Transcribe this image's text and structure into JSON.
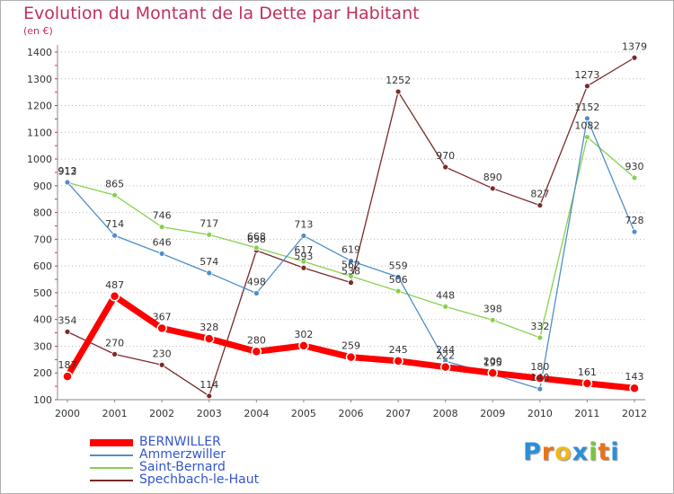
{
  "header": {
    "title": "Evolution du Montant de la Dette par Habitant",
    "unit": "(en €)"
  },
  "logo": {
    "text": "Proxiti",
    "colors": [
      "#2a8fd8",
      "#e8731a",
      "#f0b81a",
      "#2a8fd8",
      "#7cc242",
      "#e8731a",
      "#2a8fd8"
    ]
  },
  "chart_data": {
    "type": "line",
    "x": [
      "2000",
      "2001",
      "2002",
      "2003",
      "2004",
      "2005",
      "2006",
      "2007",
      "2008",
      "2009",
      "2010",
      "2011",
      "2012"
    ],
    "yticks": [
      100,
      200,
      300,
      400,
      500,
      600,
      700,
      800,
      900,
      1000,
      1100,
      1200,
      1300,
      1400
    ],
    "ylim": [
      100,
      1400
    ],
    "grid": "horizontal-dotted",
    "legend_position": "bottom-left",
    "series": [
      {
        "name": "BERNWILLER",
        "color": "#ff0000",
        "values": [
          187,
          487,
          367,
          328,
          280,
          302,
          259,
          245,
          222,
          200,
          180,
          161,
          143
        ],
        "labels": [
          "187",
          "487",
          "367",
          "328",
          "280",
          "302",
          "259",
          "245",
          "222",
          "200",
          "180",
          "161",
          "143"
        ]
      },
      {
        "name": "Ammerzwiller",
        "color": "#4f8fc8",
        "values": [
          913,
          714,
          646,
          574,
          498,
          713,
          619,
          559,
          244,
          195,
          140,
          1152,
          728
        ],
        "labels": [
          "913",
          "714",
          "646",
          "574",
          "498",
          "713",
          "619",
          "559",
          "244",
          "195",
          "140",
          "1152",
          "728"
        ]
      },
      {
        "name": "Saint-Bernard",
        "color": "#88d050",
        "values": [
          912,
          865,
          746,
          717,
          668,
          617,
          562,
          506,
          448,
          398,
          332,
          1082,
          930
        ],
        "labels": [
          "912",
          "865",
          "746",
          "717",
          "668",
          "617",
          "562",
          "506",
          "448",
          "398",
          "332",
          "1082",
          "930"
        ]
      },
      {
        "name": "Spechbach-le-Haut",
        "color": "#7a2a2a",
        "values": [
          354,
          270,
          230,
          114,
          658,
          593,
          538,
          1252,
          970,
          890,
          827,
          1273,
          1379
        ],
        "labels": [
          "354",
          "270",
          "230",
          "114",
          "658",
          "593",
          "538",
          "1252",
          "970",
          "890",
          "827",
          "1273",
          "1379"
        ]
      }
    ]
  }
}
